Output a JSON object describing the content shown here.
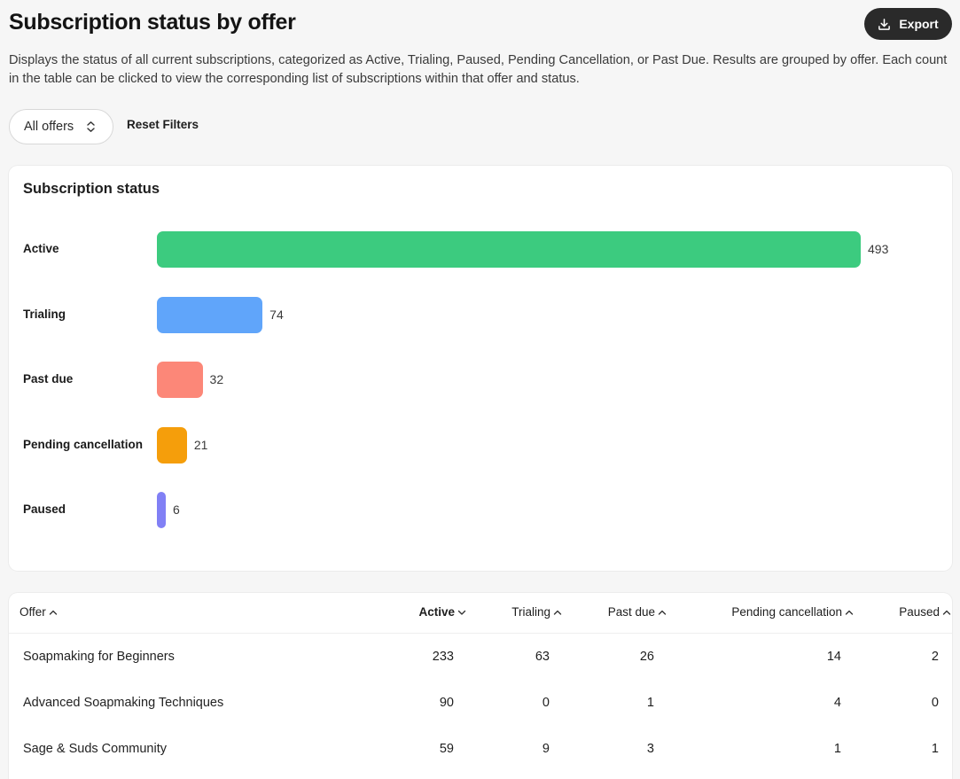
{
  "header": {
    "title": "Subscription status by offer",
    "export_label": "Export",
    "description": "Displays the status of all current subscriptions, categorized as Active, Trialing, Paused, Pending Cancellation, or Past Due. Results are grouped by offer. Each count in the table can be clicked to view the corresponding list of subscriptions within that offer and status."
  },
  "filters": {
    "offer_select_value": "All offers",
    "reset_label": "Reset Filters"
  },
  "chart": {
    "title": "Subscription status"
  },
  "chart_data": {
    "type": "bar",
    "orientation": "horizontal",
    "title": "Subscription status",
    "categories": [
      "Active",
      "Trialing",
      "Past due",
      "Pending cancellation",
      "Paused"
    ],
    "values": [
      493,
      74,
      32,
      21,
      6
    ],
    "colors": [
      "#3ccb7f",
      "#60a5fa",
      "#fc8778",
      "#f59e0b",
      "#8180f5"
    ],
    "xlim": [
      0,
      493
    ],
    "grid": false,
    "legend": "none"
  },
  "table": {
    "columns": [
      {
        "label": "Offer",
        "sort": "asc"
      },
      {
        "label": "Active",
        "sort": "desc"
      },
      {
        "label": "Trialing",
        "sort": "asc"
      },
      {
        "label": "Past due",
        "sort": "asc"
      },
      {
        "label": "Pending cancellation",
        "sort": "asc"
      },
      {
        "label": "Paused",
        "sort": "asc"
      }
    ],
    "rows": [
      {
        "offer": "Soapmaking for Beginners",
        "active": "233",
        "trialing": "63",
        "past_due": "26",
        "pending": "14",
        "paused": "2"
      },
      {
        "offer": "Advanced Soapmaking Techniques",
        "active": "90",
        "trialing": "0",
        "past_due": "1",
        "pending": "4",
        "paused": "0"
      },
      {
        "offer": "Sage & Suds Community",
        "active": "59",
        "trialing": "9",
        "past_due": "3",
        "pending": "1",
        "paused": "1"
      }
    ]
  },
  "icons": {
    "export": "download-icon",
    "select": "chevron-up-down-icon",
    "sort_asc": "chevron-up-icon",
    "sort_desc": "chevron-down-icon"
  }
}
